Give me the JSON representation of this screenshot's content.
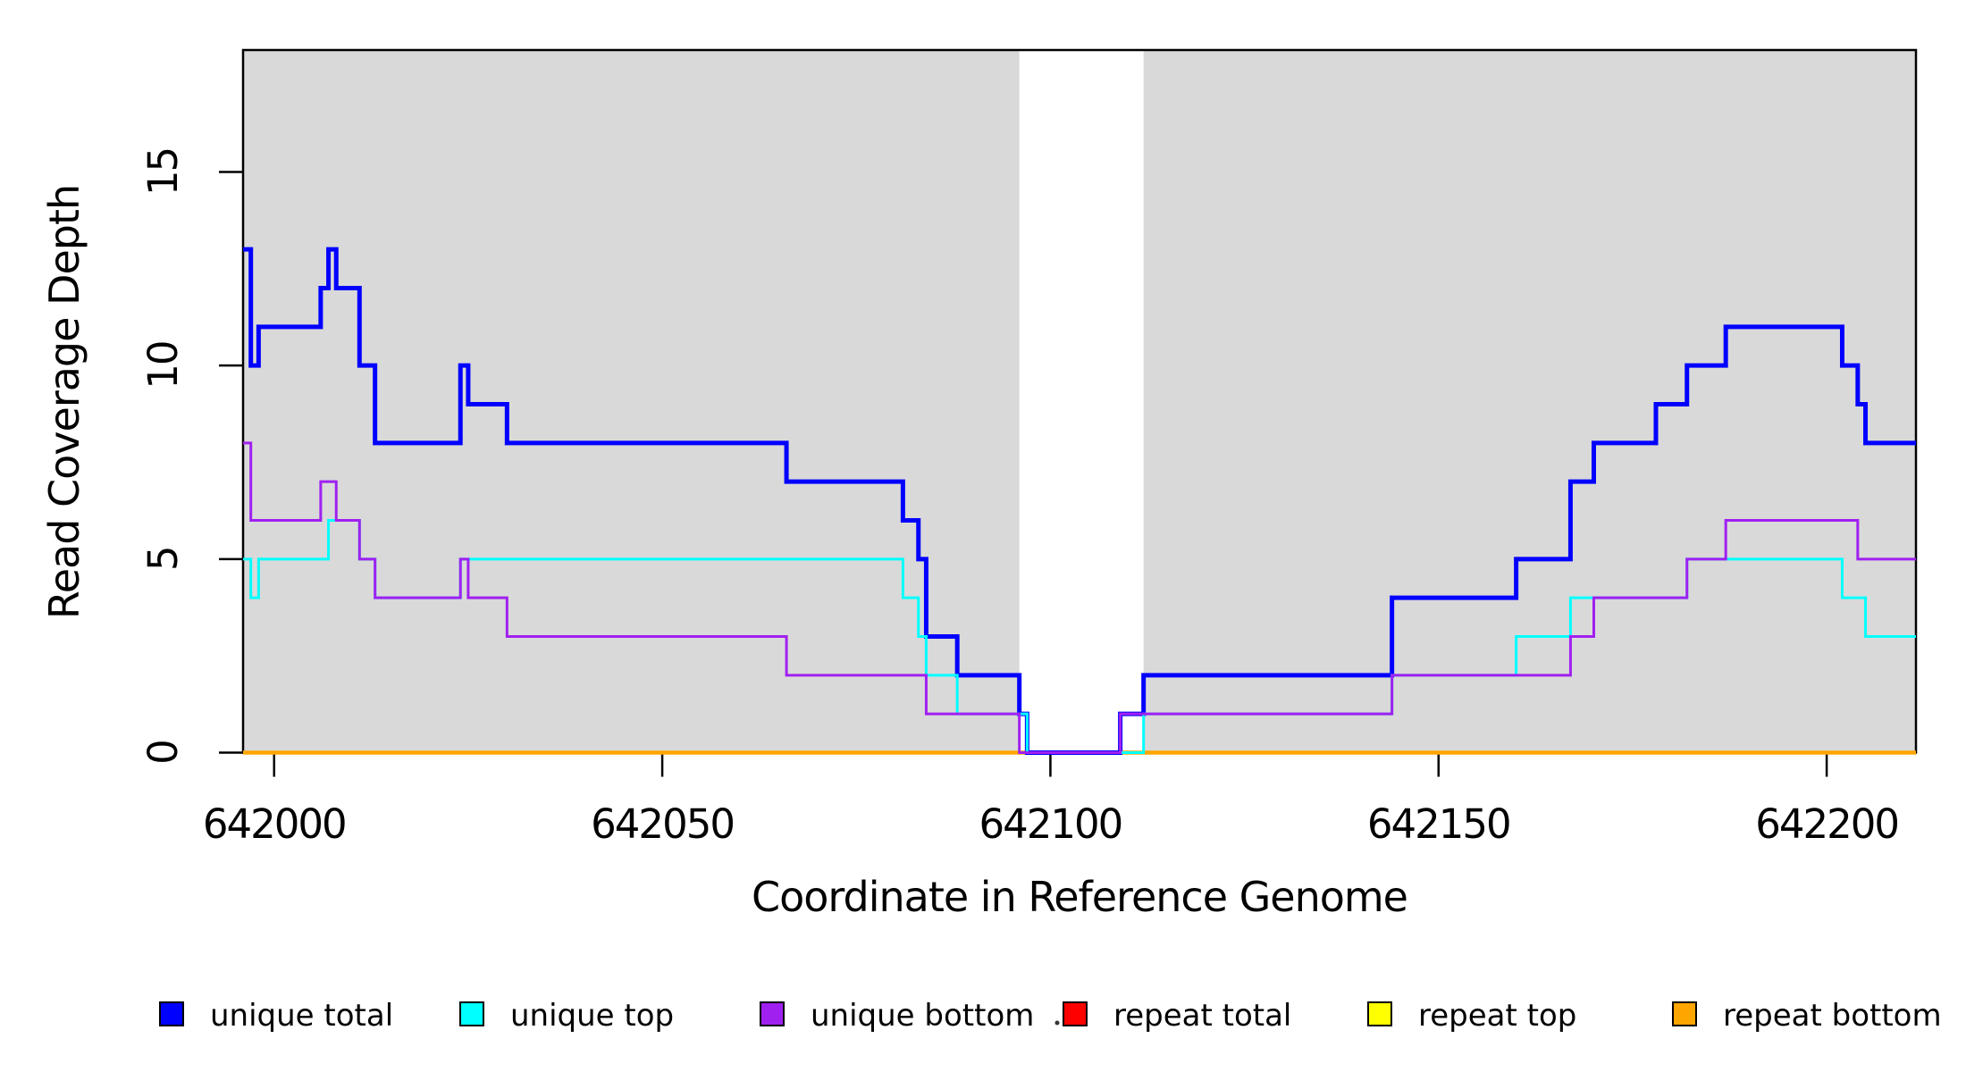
{
  "chart_data": {
    "type": "line",
    "subtype": "step-coverage-plot",
    "title": "",
    "xlabel": "Coordinate in Reference Genome",
    "ylabel": "Read Coverage Depth",
    "xlim": [
      641996,
      642211.5
    ],
    "ylim": [
      0,
      18.15
    ],
    "x_ticks": [
      642000,
      642050,
      642100,
      642150,
      642200
    ],
    "y_ticks": [
      0,
      5,
      10,
      15
    ],
    "grid": false,
    "background_color": "#FFFFFF",
    "shaded_band_color": "#D9D9D9",
    "shaded_regions": [
      {
        "x0": 641996,
        "x1": 642096
      },
      {
        "x0": 642112,
        "x1": 642211.5
      }
    ],
    "series": [
      {
        "name": "repeat total",
        "color": "#FF0000",
        "width": 3,
        "runs": [
          [
            641996,
            642211.5,
            0
          ]
        ]
      },
      {
        "name": "repeat top",
        "color": "#FFFF00",
        "width": 3,
        "runs": [
          [
            641996,
            642211.5,
            0
          ]
        ]
      },
      {
        "name": "repeat bottom",
        "color": "#FFA500",
        "width": 4.5,
        "runs": [
          [
            641996,
            642211.5,
            0
          ]
        ]
      },
      {
        "name": "unique total",
        "color": "#0000FF",
        "width": 5,
        "runs": [
          [
            641996,
            641997,
            13
          ],
          [
            641997,
            641998,
            10
          ],
          [
            641998,
            642006,
            11
          ],
          [
            642006,
            642007,
            12
          ],
          [
            642007,
            642008,
            13
          ],
          [
            642008,
            642011,
            12
          ],
          [
            642011,
            642013,
            10
          ],
          [
            642013,
            642024,
            8
          ],
          [
            642024,
            642025,
            10
          ],
          [
            642025,
            642030,
            9
          ],
          [
            642030,
            642066,
            8
          ],
          [
            642066,
            642081,
            7
          ],
          [
            642081,
            642083,
            6
          ],
          [
            642083,
            642084,
            5
          ],
          [
            642084,
            642088,
            3
          ],
          [
            642088,
            642096,
            2
          ],
          [
            642096,
            642097,
            1
          ],
          [
            642097,
            642109,
            0
          ],
          [
            642109,
            642112,
            1
          ],
          [
            642112,
            642144,
            2
          ],
          [
            642144,
            642160,
            4
          ],
          [
            642160,
            642167,
            5
          ],
          [
            642167,
            642170,
            7
          ],
          [
            642170,
            642178,
            8
          ],
          [
            642178,
            642182,
            9
          ],
          [
            642182,
            642187,
            10
          ],
          [
            642187,
            642202,
            11
          ],
          [
            642202,
            642204,
            10
          ],
          [
            642204,
            642205,
            9
          ],
          [
            642205,
            642211.5,
            8
          ]
        ]
      },
      {
        "name": "unique top",
        "color": "#00FFFF",
        "width": 3,
        "runs": [
          [
            641996,
            641997,
            5
          ],
          [
            641997,
            641998,
            4
          ],
          [
            641998,
            642007,
            5
          ],
          [
            642007,
            642011,
            6
          ],
          [
            642011,
            642013,
            5
          ],
          [
            642013,
            642024,
            4
          ],
          [
            642024,
            642081,
            5
          ],
          [
            642081,
            642083,
            4
          ],
          [
            642083,
            642084,
            3
          ],
          [
            642084,
            642088,
            2
          ],
          [
            642088,
            642097,
            1
          ],
          [
            642097,
            642112,
            0
          ],
          [
            642112,
            642144,
            1
          ],
          [
            642144,
            642160,
            2
          ],
          [
            642160,
            642167,
            3
          ],
          [
            642167,
            642182,
            4
          ],
          [
            642182,
            642202,
            5
          ],
          [
            642202,
            642205,
            4
          ],
          [
            642205,
            642211.5,
            3
          ]
        ]
      },
      {
        "name": "unique bottom",
        "color": "#A020F0",
        "width": 3,
        "runs": [
          [
            641996,
            641997,
            8
          ],
          [
            641997,
            642006,
            6
          ],
          [
            642006,
            642008,
            7
          ],
          [
            642008,
            642011,
            6
          ],
          [
            642011,
            642013,
            5
          ],
          [
            642013,
            642024,
            4
          ],
          [
            642024,
            642025,
            5
          ],
          [
            642025,
            642030,
            4
          ],
          [
            642030,
            642066,
            3
          ],
          [
            642066,
            642084,
            2
          ],
          [
            642084,
            642096,
            1
          ],
          [
            642096,
            642109,
            0
          ],
          [
            642109,
            642144,
            1
          ],
          [
            642144,
            642167,
            2
          ],
          [
            642167,
            642170,
            3
          ],
          [
            642170,
            642182,
            4
          ],
          [
            642182,
            642187,
            5
          ],
          [
            642187,
            642204,
            6
          ],
          [
            642204,
            642211.5,
            5
          ]
        ]
      }
    ],
    "legend_position": "bottom",
    "legend": [
      {
        "label": "unique total",
        "color": "#0000FF"
      },
      {
        "label": "unique top",
        "color": "#00FFFF"
      },
      {
        "label": "unique bottom",
        "color": "#A020F0"
      },
      {
        "label": "repeat total",
        "color": "#FF0000"
      },
      {
        "label": "repeat top",
        "color": "#FFFF00"
      },
      {
        "label": "repeat bottom",
        "color": "#FFA500"
      }
    ],
    "stray_mark": {
      "x": 1183,
      "y": 1145
    }
  }
}
